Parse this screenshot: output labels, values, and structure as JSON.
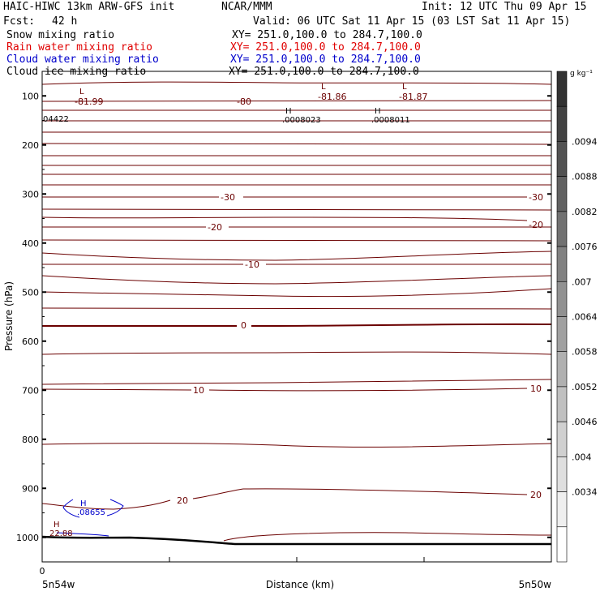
{
  "header": {
    "title_left": "HAIC-HIWC 13km ARW-GFS init",
    "org": "NCAR/MMM",
    "init": "Init: 12 UTC Thu 09 Apr 15",
    "fcst_label": "Fcst:",
    "fcst_value": "42 h",
    "valid": "Valid: 06 UTC Sat 11 Apr 15 (03 LST Sat 11 Apr 15)",
    "fields": [
      {
        "name": "Snow mixing ratio",
        "xy": "XY= 251.0,100.0 to 284.7,100.0",
        "color": "#000000"
      },
      {
        "name": "Rain water mixing ratio",
        "xy": "XY= 251.0,100.0 to 284.7,100.0",
        "color": "#e00000"
      },
      {
        "name": "Cloud water mixing ratio",
        "xy": "XY= 251.0,100.0 to 284.7,100.0",
        "color": "#0000cc"
      },
      {
        "name": "Cloud ice mixing ratio",
        "xy": "XY= 251.0,100.0 to 284.7,100.0",
        "color": "#000000"
      }
    ]
  },
  "chart_data": {
    "type": "contour",
    "xlabel": "Distance (km)",
    "ylabel": "Pressure (hPa)",
    "x_tick_labels": [
      {
        "value": 0,
        "label": "0"
      }
    ],
    "x_endpoint_labels": {
      "left": "5n54w",
      "right": "5n50w"
    },
    "y_ticks": [
      100,
      200,
      300,
      400,
      500,
      600,
      700,
      800,
      900,
      1000
    ],
    "ylim": [
      1050,
      50
    ],
    "contour_labels": [
      "-81.99",
      "-80",
      "-81.86",
      "-81.87",
      "-30",
      "-30",
      "-20",
      "-20",
      "-10",
      "0",
      "10",
      "10",
      "20",
      "20"
    ],
    "extrema": [
      {
        "type": "L",
        "value": "-81.99"
      },
      {
        "type": "L",
        "value": "-81.86"
      },
      {
        "type": "L",
        "value": "-81.87"
      },
      {
        "type": "H",
        "value": ".0008023"
      },
      {
        "type": "H",
        "value": ".0008011"
      },
      {
        "type": "H",
        "value": ".08655"
      },
      {
        "type": "H",
        "value": "22.88"
      }
    ],
    "edge_value": "04422",
    "colorbar": {
      "unit": "g kg⁻¹",
      "labels": [
        ".0094",
        ".0088",
        ".0082",
        ".0076",
        ".007",
        ".0064",
        ".0058",
        ".0052",
        ".0046",
        ".004",
        ".0034"
      ]
    },
    "colors": {
      "temperature": "#6b0000",
      "cloud_water": "#0000cc",
      "terrain": "#000000"
    }
  }
}
